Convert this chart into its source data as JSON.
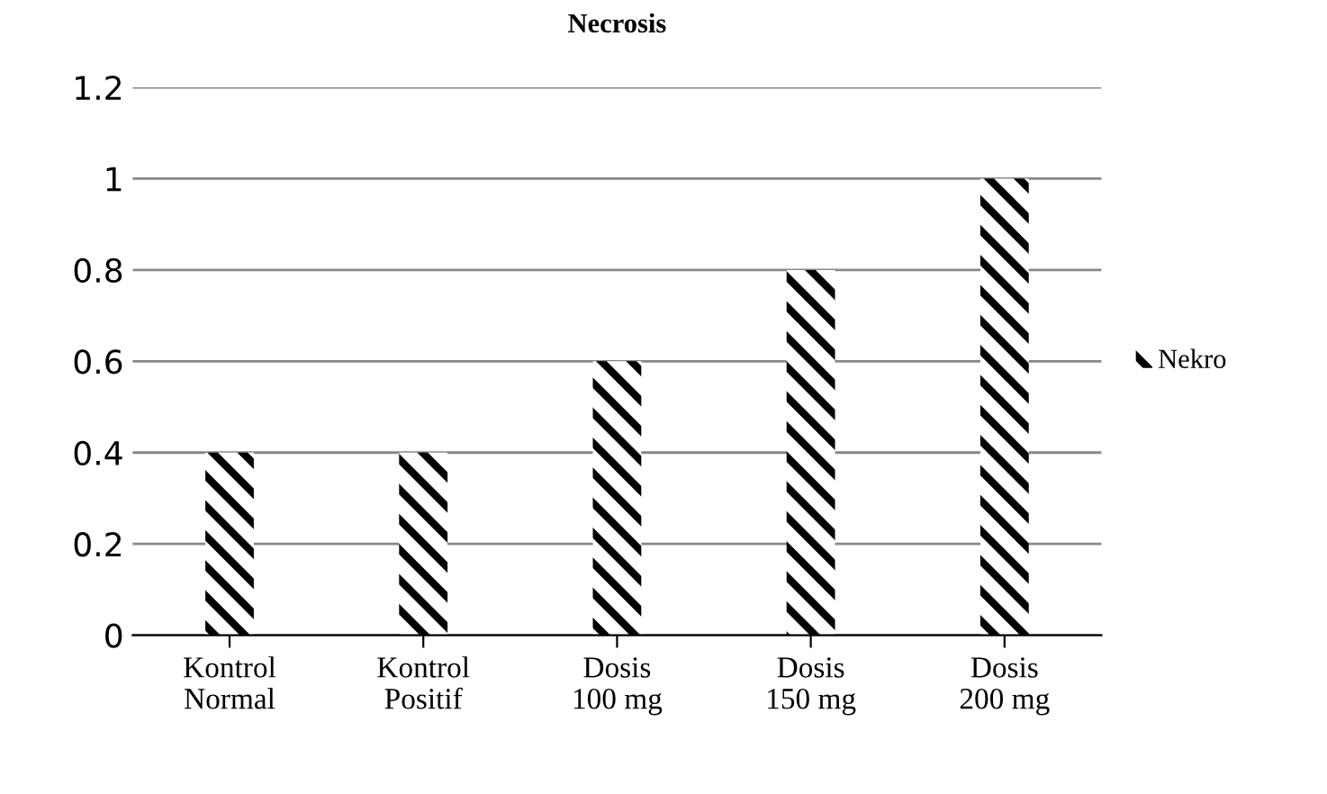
{
  "chart_data": {
    "type": "bar",
    "title": "Necrosis",
    "categories": [
      "Kontrol Normal",
      "Kontrol Positif",
      "Dosis 100 mg",
      "Dosis 150 mg",
      "Dosis 200 mg"
    ],
    "series": [
      {
        "name": "Nekro",
        "color": "#000000",
        "values": [
          0.4,
          0.4,
          0.6,
          0.8,
          1.0
        ]
      }
    ],
    "ylim": [
      0,
      1.2
    ],
    "yticks": [
      0,
      0.2,
      0.4,
      0.6,
      0.8,
      1,
      1.2
    ],
    "grid": "y",
    "legend": "right"
  }
}
